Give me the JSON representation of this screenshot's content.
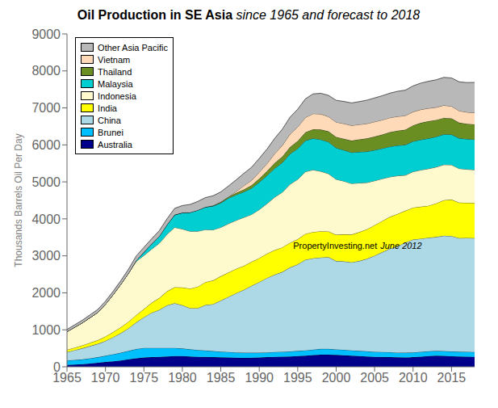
{
  "chart_data": {
    "type": "area",
    "stacked": true,
    "title": "Oil Production in SE Asia",
    "subtitle": "since 1965 and forecast to 2018",
    "ylabel": "Thousands Barrels Oil Per Day",
    "annotations": [
      "PropertyInvesting.net",
      "June 2012"
    ],
    "x": [
      1965,
      1966,
      1967,
      1968,
      1969,
      1970,
      1971,
      1972,
      1973,
      1974,
      1975,
      1976,
      1977,
      1978,
      1979,
      1980,
      1981,
      1982,
      1983,
      1984,
      1985,
      1986,
      1987,
      1988,
      1989,
      1990,
      1991,
      1992,
      1993,
      1994,
      1995,
      1996,
      1997,
      1998,
      1999,
      2000,
      2001,
      2002,
      2003,
      2004,
      2005,
      2006,
      2007,
      2008,
      2009,
      2010,
      2011,
      2012,
      2013,
      2014,
      2015,
      2016,
      2017,
      2018
    ],
    "series": [
      {
        "name": "Australia",
        "color": "#00008B",
        "values": [
          50,
          60,
          70,
          90,
          110,
          130,
          150,
          170,
          200,
          230,
          250,
          260,
          270,
          280,
          290,
          290,
          280,
          270,
          265,
          260,
          255,
          250,
          245,
          240,
          245,
          250,
          260,
          270,
          275,
          280,
          290,
          300,
          315,
          330,
          330,
          320,
          310,
          300,
          290,
          280,
          270,
          265,
          260,
          255,
          250,
          260,
          275,
          290,
          300,
          295,
          285,
          280,
          275,
          270
        ]
      },
      {
        "name": "Brunei",
        "color": "#00BFFF",
        "values": [
          120,
          125,
          130,
          140,
          150,
          170,
          190,
          210,
          230,
          250,
          260,
          250,
          240,
          230,
          220,
          205,
          195,
          185,
          175,
          165,
          155,
          150,
          145,
          140,
          135,
          130,
          130,
          130,
          130,
          135,
          140,
          145,
          150,
          155,
          155,
          150,
          150,
          145,
          140,
          140,
          135,
          135,
          135,
          130,
          130,
          130,
          130,
          130,
          130,
          130,
          130,
          130,
          130,
          130
        ]
      },
      {
        "name": "China",
        "color": "#ADD8E6",
        "values": [
          230,
          265,
          300,
          330,
          360,
          400,
          460,
          530,
          610,
          720,
          830,
          950,
          1030,
          1150,
          1210,
          1170,
          1110,
          1130,
          1230,
          1270,
          1380,
          1490,
          1600,
          1700,
          1810,
          1910,
          2010,
          2090,
          2160,
          2270,
          2340,
          2450,
          2470,
          2470,
          2480,
          2390,
          2390,
          2380,
          2430,
          2500,
          2600,
          2700,
          2800,
          2870,
          2980,
          3050,
          3060,
          3070,
          3080,
          3120,
          3120,
          3070,
          3080,
          3080
        ]
      },
      {
        "name": "India",
        "color": "#FFFF00",
        "values": [
          60,
          70,
          80,
          90,
          100,
          120,
          140,
          160,
          180,
          200,
          220,
          270,
          320,
          380,
          430,
          480,
          530,
          580,
          620,
          640,
          660,
          660,
          660,
          650,
          650,
          650,
          660,
          665,
          665,
          670,
          680,
          700,
          710,
          710,
          695,
          710,
          730,
          750,
          780,
          800,
          825,
          845,
          860,
          880,
          860,
          865,
          865,
          865,
          910,
          960,
          985,
          960,
          950,
          950
        ]
      },
      {
        "name": "Indonesia",
        "color": "#FFFACD",
        "values": [
          490,
          550,
          610,
          680,
          750,
          870,
          1010,
          1160,
          1310,
          1450,
          1450,
          1450,
          1480,
          1540,
          1620,
          1580,
          1550,
          1500,
          1420,
          1370,
          1320,
          1320,
          1310,
          1310,
          1280,
          1310,
          1350,
          1430,
          1490,
          1580,
          1620,
          1680,
          1680,
          1620,
          1560,
          1500,
          1440,
          1380,
          1330,
          1260,
          1200,
          1140,
          1080,
          1030,
          960,
          970,
          990,
          1000,
          980,
          960,
          940,
          920,
          905,
          895
        ]
      },
      {
        "name": "Malaysia",
        "color": "#00CED1",
        "values": [
          0,
          0,
          0,
          0,
          0,
          0,
          0,
          0,
          0,
          25,
          90,
          140,
          190,
          260,
          340,
          440,
          510,
          570,
          610,
          640,
          660,
          690,
          690,
          690,
          710,
          740,
          760,
          780,
          800,
          820,
          830,
          840,
          850,
          860,
          860,
          850,
          840,
          840,
          840,
          840,
          830,
          820,
          820,
          820,
          820,
          820,
          820,
          820,
          820,
          820,
          820,
          820,
          820,
          820
        ]
      },
      {
        "name": "Thailand",
        "color": "#6B8E23",
        "values": [
          0,
          0,
          0,
          0,
          0,
          0,
          0,
          0,
          0,
          0,
          0,
          0,
          0,
          0,
          0,
          0,
          0,
          0,
          0,
          15,
          25,
          35,
          50,
          65,
          80,
          100,
          120,
          145,
          165,
          185,
          205,
          225,
          250,
          270,
          285,
          295,
          305,
          320,
          340,
          355,
          365,
          375,
          390,
          400,
          410,
          430,
          455,
          465,
          455,
          445,
          435,
          420,
          410,
          410
        ]
      },
      {
        "name": "Vietnam",
        "color": "#FFDAB9",
        "values": [
          0,
          0,
          0,
          0,
          0,
          0,
          0,
          0,
          0,
          0,
          0,
          0,
          0,
          0,
          0,
          0,
          0,
          0,
          0,
          0,
          0,
          0,
          40,
          100,
          130,
          170,
          200,
          250,
          300,
          350,
          380,
          400,
          420,
          420,
          400,
          400,
          410,
          410,
          400,
          400,
          400,
          395,
          390,
          385,
          380,
          370,
          360,
          350,
          340,
          340,
          330,
          320,
          315,
          315
        ]
      },
      {
        "name": "Other Asia Pacific",
        "color": "#B8B8B8",
        "values": [
          60,
          65,
          70,
          75,
          80,
          85,
          90,
          100,
          110,
          120,
          130,
          140,
          150,
          160,
          175,
          195,
          215,
          235,
          255,
          265,
          275,
          295,
          315,
          335,
          355,
          375,
          395,
          415,
          440,
          460,
          480,
          505,
          535,
          560,
          575,
          590,
          600,
          610,
          620,
          635,
          645,
          655,
          665,
          680,
          690,
          700,
          715,
          730,
          745,
          755,
          765,
          785,
          800,
          820
        ]
      }
    ],
    "xlim": [
      1965,
      2018
    ],
    "ylim": [
      0,
      9000
    ],
    "xticks": [
      1965,
      1970,
      1975,
      1980,
      1985,
      1990,
      1995,
      2000,
      2005,
      2010,
      2015
    ],
    "yticks": [
      0,
      1000,
      2000,
      3000,
      4000,
      5000,
      6000,
      7000,
      8000,
      9000
    ],
    "grid": false,
    "legend": "upper left"
  }
}
